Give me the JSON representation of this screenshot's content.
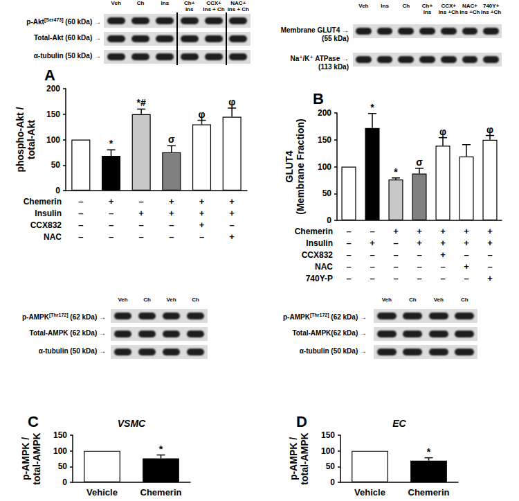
{
  "chart_data": [
    {
      "type": "bar",
      "panel": "A",
      "blot": {
        "lanes": [
          "Veh",
          "Ch",
          "Ins",
          "Ch+\nIns",
          "CCX+\nIns + Ch",
          "NAC+\nIns + Ch"
        ],
        "rows": [
          {
            "name": "p-Akt",
            "superscript": "[Ser473]",
            "suffix": "(60 kDa) →"
          },
          {
            "name": "Total-Akt",
            "suffix": "(60 kDa) →"
          },
          {
            "name": "α-tubulin",
            "suffix": "(50 kDa) →"
          }
        ]
      },
      "y_label": "phospho-Akt /\ntotal-Akt",
      "categories": [
        null,
        null,
        null,
        null,
        null,
        null
      ],
      "values": [
        100,
        68,
        150,
        75,
        130,
        145
      ],
      "errors": [
        0,
        12,
        10,
        13,
        8,
        17
      ],
      "significance": [
        null,
        "*",
        "*#",
        "σ",
        "φ",
        "φ"
      ],
      "colors": [
        "#ffffff",
        "#000000",
        "#c8c8c8",
        "#808080",
        "#ffffff",
        "#ffffff"
      ],
      "ylim": [
        0,
        200
      ],
      "yticks": [
        0,
        50,
        100,
        150,
        200
      ],
      "tick_labels": "y",
      "treatments": [
        {
          "label": "Chemerin",
          "signs": [
            "–",
            "+",
            "–",
            "+",
            "+",
            "+"
          ]
        },
        {
          "label": "Insulin",
          "signs": [
            "–",
            "–",
            "+",
            "+",
            "+",
            "+"
          ]
        },
        {
          "label": "CCX832",
          "signs": [
            "–",
            "–",
            "–",
            "–",
            "+",
            "–"
          ]
        },
        {
          "label": "NAC",
          "signs": [
            "–",
            "–",
            "–",
            "–",
            "–",
            "+"
          ]
        }
      ]
    },
    {
      "type": "bar",
      "panel": "B",
      "blot": {
        "lanes": [
          "Veh",
          "Ins",
          "Ch",
          "Ch+\nIns",
          "CCX+\nIns +Ch",
          "NAC+\nIns +Ch",
          "740Y+\nIns +Ch"
        ],
        "rows": [
          {
            "name": "Membrane GLUT4 →",
            "second_line": "(55 kDa)"
          },
          {
            "name": "Na⁺/K⁺ ATPase →",
            "second_line": "(113 kDa)"
          }
        ]
      },
      "y_label": "GLUT4\n(Membrane Fraction)",
      "categories": [
        null,
        null,
        null,
        null,
        null,
        null,
        null
      ],
      "values": [
        100,
        172,
        76,
        87,
        139,
        119,
        150
      ],
      "errors": [
        0,
        27,
        3,
        10,
        15,
        22,
        8
      ],
      "significance": [
        null,
        "*",
        "*",
        "σ",
        "φ",
        null,
        "φ"
      ],
      "colors": [
        "#ffffff",
        "#000000",
        "#c8c8c8",
        "#808080",
        "#ffffff",
        "#ffffff",
        "#ffffff"
      ],
      "ylim": [
        0,
        200
      ],
      "yticks": [
        0,
        50,
        100,
        150,
        200
      ],
      "tick_labels": "y",
      "treatments": [
        {
          "label": "Chemerin",
          "signs": [
            "–",
            "–",
            "+",
            "+",
            "+",
            "+",
            "+"
          ]
        },
        {
          "label": "Insulin",
          "signs": [
            "–",
            "+",
            "–",
            "+",
            "+",
            "+",
            "+"
          ]
        },
        {
          "label": "CCX832",
          "signs": [
            "–",
            "–",
            "–",
            "–",
            "+",
            "–",
            "–"
          ]
        },
        {
          "label": "NAC",
          "signs": [
            "–",
            "–",
            "–",
            "–",
            "–",
            "+",
            "–"
          ]
        },
        {
          "label": "740Y-P",
          "signs": [
            "–",
            "–",
            "–",
            "–",
            "–",
            "–",
            "+"
          ]
        }
      ]
    },
    {
      "type": "bar",
      "panel": "C",
      "title": "VSMC",
      "blot": {
        "lanes": [
          "Veh",
          "Ch",
          "Veh",
          "Ch"
        ],
        "rows": [
          {
            "name": "p-AMPK",
            "superscript": "[Thr172]",
            "suffix": "(62 kDa) →"
          },
          {
            "name": "Total-AMPK",
            "suffix": "(62 kDa) →"
          },
          {
            "name": "α-tubulin",
            "suffix": "(50 kDa) →"
          }
        ]
      },
      "y_label": "p-AMPK /\ntotal-AMPK",
      "categories": [
        "Vehicle",
        "Chemerin"
      ],
      "values": [
        100,
        76
      ],
      "errors": [
        0,
        11
      ],
      "significance": [
        null,
        "*"
      ],
      "colors": [
        "#ffffff",
        "#000000"
      ],
      "ylim": [
        0,
        150
      ],
      "yticks": [
        0,
        50,
        100,
        150
      ]
    },
    {
      "type": "bar",
      "panel": "D",
      "title": "EC",
      "blot": {
        "lanes": [
          "Veh",
          "Ch",
          "Veh",
          "Ch"
        ],
        "rows": [
          {
            "name": "p-AMPK",
            "superscript": "[Thr172]",
            "suffix": "(62 kDa) →"
          },
          {
            "name": "Total-AMPK(62 kDa) →"
          },
          {
            "name": "α-tubulin",
            "suffix": "(50 kDa) →"
          }
        ]
      },
      "y_label": "p-AMPK /\ntotal-AMPK",
      "categories": [
        "Vehicle",
        "Chemerin"
      ],
      "values": [
        100,
        69
      ],
      "errors": [
        0,
        9
      ],
      "significance": [
        null,
        "*"
      ],
      "colors": [
        "#ffffff",
        "#000000"
      ],
      "ylim": [
        0,
        150
      ],
      "yticks": [
        0,
        50,
        100,
        150
      ]
    }
  ]
}
